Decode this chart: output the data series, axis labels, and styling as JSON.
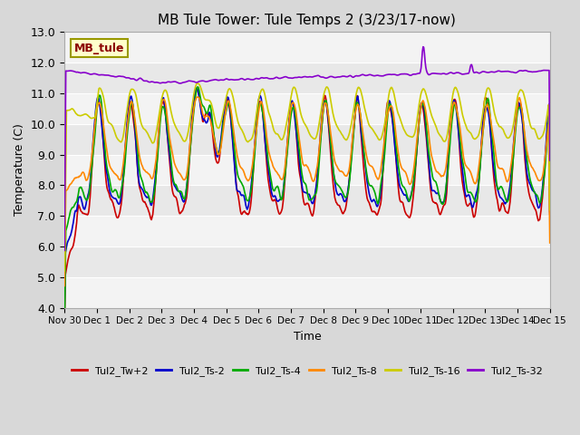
{
  "title": "MB Tule Tower: Tule Temps 2 (3/23/17-now)",
  "xlabel": "Time",
  "ylabel": "Temperature (C)",
  "ylim": [
    4.0,
    13.0
  ],
  "yticks": [
    4.0,
    5.0,
    6.0,
    7.0,
    8.0,
    9.0,
    10.0,
    11.0,
    12.0,
    13.0
  ],
  "xtick_labels": [
    "Nov 30",
    "Dec 1",
    "Dec 2",
    "Dec 3",
    "Dec 4",
    "Dec 5",
    "Dec 6",
    "Dec 7",
    "Dec 8",
    "Dec 9",
    "Dec 10",
    "Dec 11",
    "Dec 12",
    "Dec 13",
    "Dec 14",
    "Dec 15"
  ],
  "bg_color": "#e8e8e8",
  "plot_bg_color": "#e8e8e8",
  "series_colors": {
    "Tul2_Tw+2": "#cc0000",
    "Tul2_Ts-2": "#0000cc",
    "Tul2_Ts-4": "#00aa00",
    "Tul2_Ts-8": "#ff8800",
    "Tul2_Ts-16": "#cccc00",
    "Tul2_Ts-32": "#8800cc"
  },
  "legend_label": "MB_tule",
  "legend_bg": "#ffffcc",
  "legend_border": "#999900"
}
